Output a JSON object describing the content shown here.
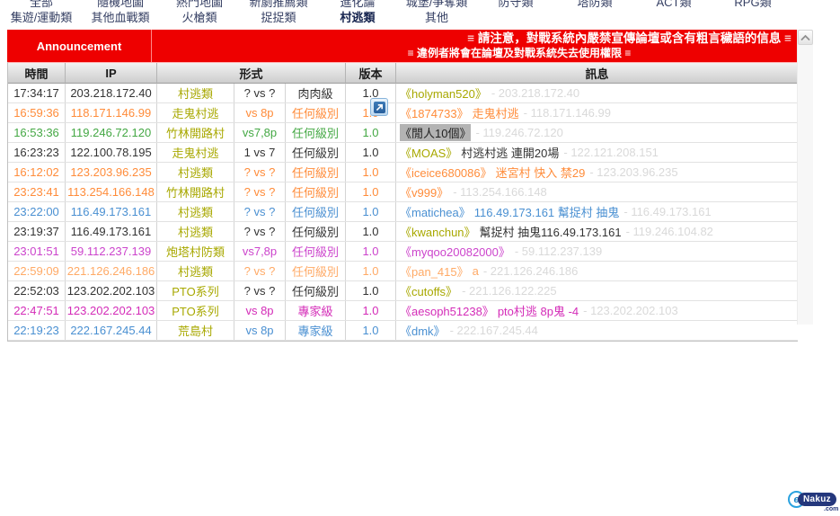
{
  "nav": {
    "row1": [
      "全部",
      "隨機地圖",
      "熱門地圖",
      "新劇推薦類",
      "進化論",
      "城堡/爭奪類",
      "防守類",
      "塔防類",
      "ACT類",
      "RPG類"
    ],
    "row2": [
      "集遊/運動類",
      "其他血戰類",
      "火槍類",
      "捉捉類",
      "村逃類",
      "其他"
    ],
    "selected": "村逃類"
  },
  "announcement": {
    "label": "Announcement",
    "line1": "≡ 請注意，對戰系統內嚴禁宣傳論壇或含有粗言穢語的信息 ≡",
    "line2": "≡ 違例者將會在論壇及對戰系統失去使用權限 ≡"
  },
  "table": {
    "headers": {
      "time": "時間",
      "ip": "IP",
      "format": "形式",
      "version": "版本",
      "message": "訊息"
    },
    "rows": [
      {
        "time": "17:34:17",
        "ip": "203.218.172.40",
        "map": "村逃類",
        "vs": "? vs ?",
        "level": "肉肉級",
        "version": "1.0",
        "user": "《holyman520》",
        "body": "",
        "msg_ip": "- 203.218.172.40",
        "color": "#333333",
        "user_color": "#a8a800",
        "selected": false
      },
      {
        "time": "16:59:36",
        "ip": "118.171.146.99",
        "map": "走鬼村逃",
        "vs": "vs 8p",
        "level": "任何級別",
        "version": "1.0",
        "user": "《1874733》",
        "body": "走鬼村逃",
        "msg_ip": "- 118.171.146.99",
        "color": "#ff8c3a",
        "user_color": "#ff8c3a",
        "selected": false
      },
      {
        "time": "16:53:36",
        "ip": "119.246.72.120",
        "map": "竹林開路村",
        "vs": "vs7,8p",
        "level": "任何級別",
        "version": "1.0",
        "user": "《閒人10個》",
        "body": "",
        "msg_ip": "- 119.246.72.120",
        "color": "#44a844",
        "user_color": "#222222",
        "selected": true
      },
      {
        "time": "16:23:23",
        "ip": "122.100.78.195",
        "map": "走鬼村逃",
        "vs": "1 vs 7",
        "level": "任何級別",
        "version": "1.0",
        "user": "《MOAS》",
        "body": "村逃村逃 連開20場",
        "msg_ip": "- 122.121.208.151",
        "color": "#333333",
        "user_color": "#a8a800",
        "selected": false
      },
      {
        "time": "16:12:02",
        "ip": "123.203.96.235",
        "map": "村逃類",
        "vs": "? vs ?",
        "level": "任何級別",
        "version": "1.0",
        "user": "《iceice680086》",
        "body": "迷宮村 快入 禁29",
        "msg_ip": "- 123.203.96.235",
        "color": "#ff8c3a",
        "user_color": "#ff8c3a",
        "selected": false
      },
      {
        "time": "23:23:41",
        "ip": "113.254.166.148",
        "map": "竹林開路村",
        "vs": "? vs ?",
        "level": "任何級別",
        "version": "1.0",
        "user": "《v999》",
        "body": "",
        "msg_ip": "- 113.254.166.148",
        "color": "#ff8c3a",
        "user_color": "#ff8c3a",
        "selected": false
      },
      {
        "time": "23:22:00",
        "ip": "116.49.173.161",
        "map": "村逃類",
        "vs": "? vs ?",
        "level": "任何級別",
        "version": "1.0",
        "user": "《matichea》",
        "body": "116.49.173.161 幫捉村 抽鬼",
        "msg_ip": "- 116.49.173.161",
        "color": "#4a90d2",
        "user_color": "#4a90d2",
        "selected": false
      },
      {
        "time": "23:19:37",
        "ip": "116.49.173.161",
        "map": "村逃類",
        "vs": "? vs ?",
        "level": "任何級別",
        "version": "1.0",
        "user": "《kwanchun》",
        "body": "幫捉村 抽鬼116.49.173.161",
        "msg_ip": "- 119.246.104.82",
        "color": "#333333",
        "user_color": "#a8a800",
        "selected": false
      },
      {
        "time": "23:01:51",
        "ip": "59.112.237.139",
        "map": "炮塔村防類",
        "vs": "vs7,8p",
        "level": "任何級別",
        "version": "1.0",
        "user": "《myqoo20082000》",
        "body": "",
        "msg_ip": "- 59.112.237.139",
        "color": "#cc44cc",
        "user_color": "#cc44cc",
        "selected": false
      },
      {
        "time": "22:59:09",
        "ip": "221.126.246.186",
        "map": "村逃類",
        "vs": "? vs ?",
        "level": "任何級別",
        "version": "1.0",
        "user": "《pan_415》",
        "body": "a",
        "msg_ip": "- 221.126.246.186",
        "color": "#ffaa66",
        "user_color": "#ffaa66",
        "selected": false
      },
      {
        "time": "22:52:03",
        "ip": "123.202.202.103",
        "map": "PTO系列",
        "vs": "? vs ?",
        "level": "任何級別",
        "version": "1.0",
        "user": "《cutoffs》",
        "body": "",
        "msg_ip": "- 221.126.122.225",
        "color": "#333333",
        "user_color": "#a8a800",
        "selected": false
      },
      {
        "time": "22:47:51",
        "ip": "123.202.202.103",
        "map": "PTO系列",
        "vs": "vs 8p",
        "level": "專家級",
        "version": "1.0",
        "user": "《aesoph51238》",
        "body": "pto村逃 8p鬼 -4",
        "msg_ip": "- 123.202.202.103",
        "color": "#d42cb8",
        "user_color": "#d42cb8",
        "selected": false
      },
      {
        "time": "22:19:23",
        "ip": "222.167.245.44",
        "map": "荒島村",
        "vs": "vs 8p",
        "level": "專家級",
        "version": "1.0",
        "user": "《dmk》",
        "body": "",
        "msg_ip": "- 222.167.245.44",
        "color": "#4a90d2",
        "user_color": "#4a90d2",
        "selected": false
      }
    ]
  },
  "colors": {
    "accent_red": "#ee0000",
    "map_type": "#a8a800",
    "faint_ip": "#d9d9d9",
    "selection_bg": "#b3b3b3"
  },
  "icons": {
    "expand_icon": "↗",
    "scroll_up_icon": "∧",
    "nakuz_swoosh": "e"
  },
  "logo": {
    "name": "Nakuz",
    "tld": ".com"
  }
}
